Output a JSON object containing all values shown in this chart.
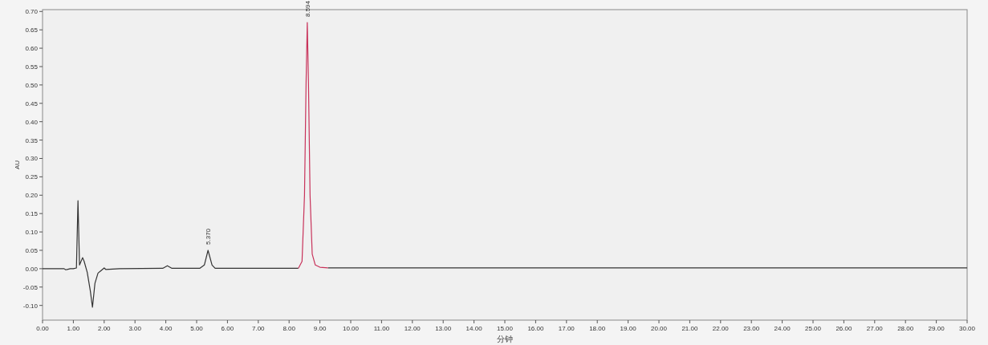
{
  "chart_data": {
    "type": "line",
    "xlabel": "分钟",
    "ylabel": "AU",
    "xlim": [
      0,
      30
    ],
    "ylim": [
      -0.14,
      0.705
    ],
    "xticks": [
      {
        "value": 0,
        "label": "0.00"
      },
      {
        "value": 1,
        "label": "1.00"
      },
      {
        "value": 2,
        "label": "2.00"
      },
      {
        "value": 3,
        "label": "3.00"
      },
      {
        "value": 4,
        "label": "4.00"
      },
      {
        "value": 5,
        "label": "5.00"
      },
      {
        "value": 6,
        "label": "6.00"
      },
      {
        "value": 7,
        "label": "7.00"
      },
      {
        "value": 8,
        "label": "8.00"
      },
      {
        "value": 9,
        "label": "9.00"
      },
      {
        "value": 10,
        "label": "10.00"
      },
      {
        "value": 11,
        "label": "11.00"
      },
      {
        "value": 12,
        "label": "12.00"
      },
      {
        "value": 13,
        "label": "13.00"
      },
      {
        "value": 14,
        "label": "14.00"
      },
      {
        "value": 15,
        "label": "15.00"
      },
      {
        "value": 16,
        "label": "16.00"
      },
      {
        "value": 17,
        "label": "17.00"
      },
      {
        "value": 18,
        "label": "18.00"
      },
      {
        "value": 19,
        "label": "19.00"
      },
      {
        "value": 20,
        "label": "20.00"
      },
      {
        "value": 21,
        "label": "21.00"
      },
      {
        "value": 22,
        "label": "22.00"
      },
      {
        "value": 23,
        "label": "23.00"
      },
      {
        "value": 24,
        "label": "24.00"
      },
      {
        "value": 25,
        "label": "25.00"
      },
      {
        "value": 26,
        "label": "26.00"
      },
      {
        "value": 27,
        "label": "27.00"
      },
      {
        "value": 28,
        "label": "28.00"
      },
      {
        "value": 29,
        "label": "29.00"
      },
      {
        "value": 30,
        "label": "30.00"
      }
    ],
    "yticks": [
      {
        "value": -0.1,
        "label": "-0.10"
      },
      {
        "value": -0.05,
        "label": "-0.05"
      },
      {
        "value": 0,
        "label": "0.00"
      },
      {
        "value": 0.05,
        "label": "0.05"
      },
      {
        "value": 0.1,
        "label": "0.10"
      },
      {
        "value": 0.15,
        "label": "0.15"
      },
      {
        "value": 0.2,
        "label": "0.20"
      },
      {
        "value": 0.25,
        "label": "0.25"
      },
      {
        "value": 0.3,
        "label": "0.30"
      },
      {
        "value": 0.35,
        "label": "0.35"
      },
      {
        "value": 0.4,
        "label": "0.40"
      },
      {
        "value": 0.45,
        "label": "0.45"
      },
      {
        "value": 0.5,
        "label": "0.50"
      },
      {
        "value": 0.55,
        "label": "0.55"
      },
      {
        "value": 0.6,
        "label": "0.60"
      },
      {
        "value": 0.65,
        "label": "0.65"
      },
      {
        "value": 0.7,
        "label": "0.70"
      }
    ],
    "series": [
      {
        "color": "#333333",
        "x": [
          0,
          0.7,
          0.75,
          0.8,
          0.9,
          1.0,
          1.1,
          1.15,
          1.2,
          1.3,
          1.35,
          1.45,
          1.55,
          1.62,
          1.7,
          1.8,
          1.9,
          2.0,
          2.05,
          2.5,
          3.9,
          4.05,
          4.2,
          5.1,
          5.25,
          5.37,
          5.5,
          5.6,
          7,
          8.3,
          8.8,
          9.26,
          12,
          15,
          20,
          25,
          30
        ],
        "values": [
          0,
          0,
          -0.003,
          -0.002,
          0,
          0,
          0.002,
          0.185,
          0.01,
          0.03,
          0.02,
          -0.01,
          -0.06,
          -0.105,
          -0.04,
          -0.012,
          -0.005,
          0.002,
          -0.002,
          0,
          0.001,
          0.008,
          0.001,
          0.001,
          0.01,
          0.05,
          0.01,
          0.001,
          0.001,
          0.001,
          null,
          0.002,
          0.002,
          0.002,
          0.002,
          0.002,
          0.002
        ]
      },
      {
        "color": "#c8325a",
        "x": [
          8.3,
          8.42,
          8.5,
          8.55,
          8.59,
          8.63,
          8.68,
          8.75,
          8.85,
          9.0,
          9.26
        ],
        "values": [
          0.001,
          0.02,
          0.2,
          0.5,
          0.67,
          0.5,
          0.2,
          0.04,
          0.01,
          0.004,
          0.002
        ]
      }
    ],
    "annotations": [
      {
        "text": "5.370",
        "x": 5.37,
        "y": 0.05
      },
      {
        "text": "8.594",
        "x": 8.59,
        "y": 0.67
      }
    ],
    "grid": false,
    "marker": "none",
    "line_style": "solid"
  }
}
